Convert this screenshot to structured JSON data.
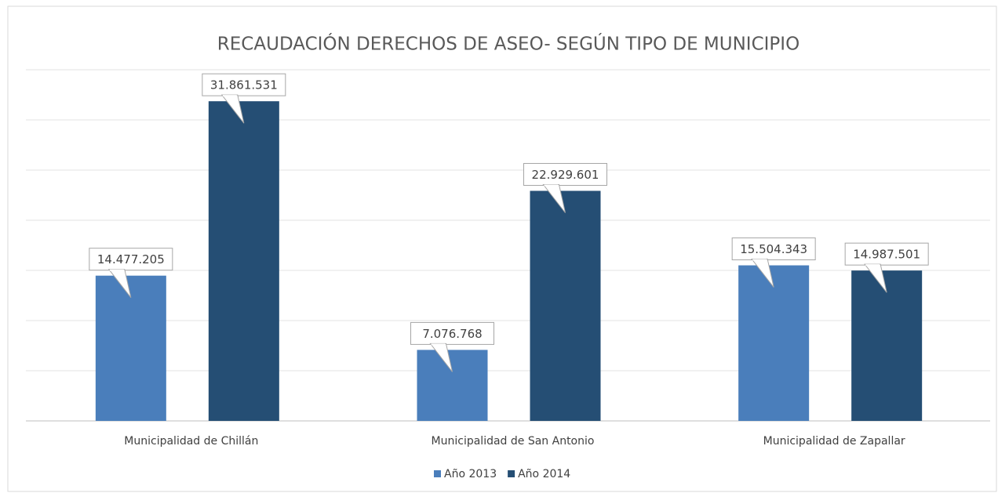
{
  "chart_data": {
    "type": "bar",
    "title": "RECAUDACIÓN DERECHOS DE ASEO- SEGÚN TIPO DE MUNICIPIO",
    "categories": [
      "Municipalidad de Chillán",
      "Municipalidad de San Antonio",
      "Municipalidad de Zapallar"
    ],
    "series": [
      {
        "name": "Año 2013",
        "color": "#4a7ebb",
        "values": [
          14477205,
          7076768,
          15504343
        ],
        "value_labels": [
          "14.477.205",
          "7.076.768",
          "15.504.343"
        ]
      },
      {
        "name": "Año 2014",
        "color": "#254e74",
        "values": [
          31861531,
          22929601,
          14987501
        ],
        "value_labels": [
          "31.861.531",
          "22.929.601",
          "14.987.501"
        ]
      }
    ],
    "ylim": [
      0,
      35000000
    ],
    "yticks": [
      0,
      5000000,
      10000000,
      15000000,
      20000000,
      25000000,
      30000000,
      35000000
    ],
    "grid": true,
    "legend": "bottom"
  }
}
